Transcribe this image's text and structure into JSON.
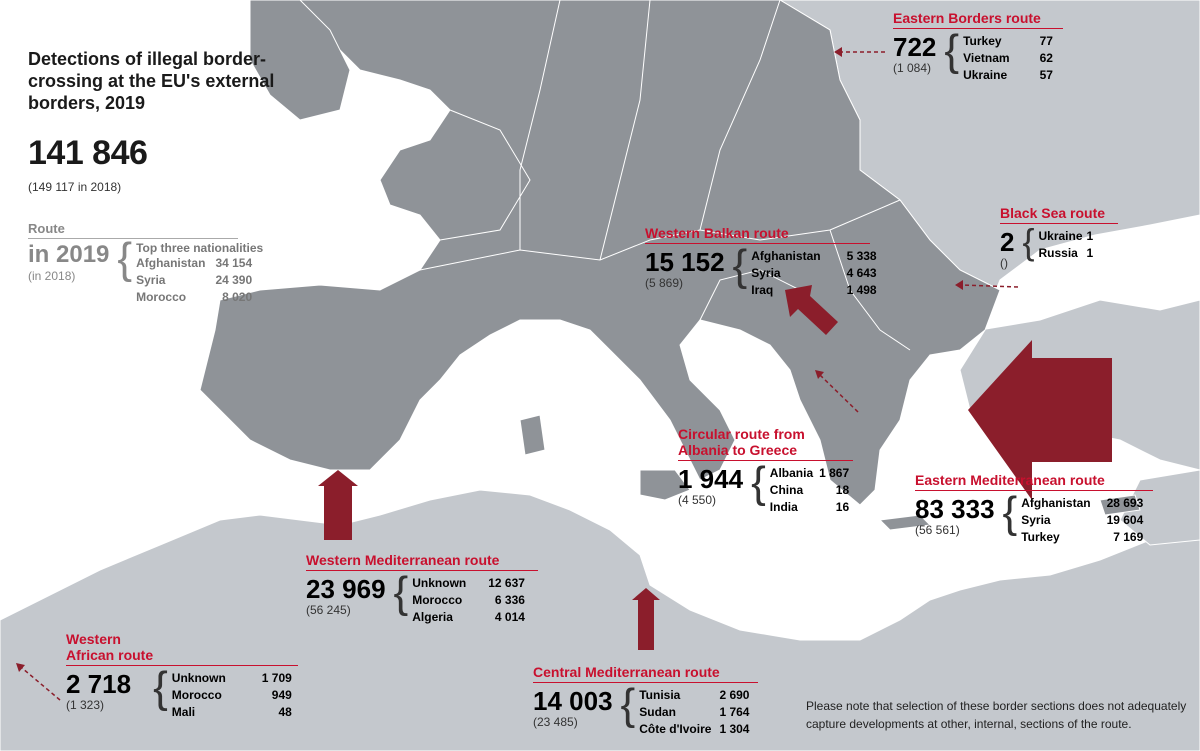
{
  "title": "Detections of illegal border-crossing at the EU's external borders, 2019",
  "total": "141 846",
  "total_prev": "(149 117 in 2018)",
  "legend": {
    "route_label": "Route",
    "year_label": "in 2019",
    "prev_label": "(in 2018)",
    "nat_header": "Top three  nationalities",
    "rows": [
      {
        "name": "Afghanistan",
        "value": "34 154"
      },
      {
        "name": "Syria",
        "value": "24 390"
      },
      {
        "name": "Morocco",
        "value": "8 020"
      }
    ]
  },
  "routes": {
    "eastern_borders": {
      "name": "Eastern Borders route",
      "total": "722",
      "prev": "(1 084)",
      "rows": [
        {
          "name": "Turkey",
          "value": "77"
        },
        {
          "name": "Vietnam",
          "value": "62"
        },
        {
          "name": "Ukraine",
          "value": "57"
        }
      ]
    },
    "black_sea": {
      "name": "Black Sea route",
      "total": "2",
      "prev": "()",
      "rows": [
        {
          "name": "Ukraine",
          "value": "1"
        },
        {
          "name": "Russia",
          "value": "1"
        }
      ]
    },
    "western_balkan": {
      "name": "Western Balkan route",
      "total": "15 152",
      "prev": "(5 869)",
      "rows": [
        {
          "name": "Afghanistan",
          "value": "5 338"
        },
        {
          "name": "Syria",
          "value": "4 643"
        },
        {
          "name": "Iraq",
          "value": "1 498"
        }
      ]
    },
    "circular": {
      "name_line1": "Circular route from",
      "name_line2": "Albania to Greece",
      "total": "1 944",
      "prev": "(4 550)",
      "rows": [
        {
          "name": "Albania",
          "value": "1 867"
        },
        {
          "name": "China",
          "value": "18"
        },
        {
          "name": "India",
          "value": "16"
        }
      ]
    },
    "eastern_med": {
      "name": "Eastern Mediterranean route",
      "total": "83 333",
      "prev": "(56 561)",
      "rows": [
        {
          "name": "Afghanistan",
          "value": "28 693"
        },
        {
          "name": "Syria",
          "value": "19 604"
        },
        {
          "name": "Turkey",
          "value": "7 169"
        }
      ]
    },
    "western_med": {
      "name": "Western Mediterranean route",
      "total": "23 969",
      "prev": "(56 245)",
      "rows": [
        {
          "name": "Unknown",
          "value": "12 637"
        },
        {
          "name": "Morocco",
          "value": "6 336"
        },
        {
          "name": "Algeria",
          "value": "4 014"
        }
      ]
    },
    "central_med": {
      "name": "Central Mediterranean route",
      "total": "14 003",
      "prev": "(23 485)",
      "rows": [
        {
          "name": "Tunisia",
          "value": "2 690"
        },
        {
          "name": "Sudan",
          "value": "1 764"
        },
        {
          "name": "Côte d'Ivoire",
          "value": "1 304"
        }
      ]
    },
    "western_african": {
      "name_line1": "Western",
      "name_line2": "African route",
      "total": "2 718",
      "prev": "(1 323)",
      "rows": [
        {
          "name": "Unknown",
          "value": "1 709"
        },
        {
          "name": "Morocco",
          "value": "949"
        },
        {
          "name": "Mali",
          "value": "48"
        }
      ]
    }
  },
  "note": "Please note that selection of these border sections does not adequately capture developments at other, internal, sections of the route.",
  "colors": {
    "accent": "#c8102e",
    "arrow": "#8b1e2b",
    "land": "#8e9297",
    "land_light": "#bfc3c8",
    "sea": "#ffffff"
  }
}
